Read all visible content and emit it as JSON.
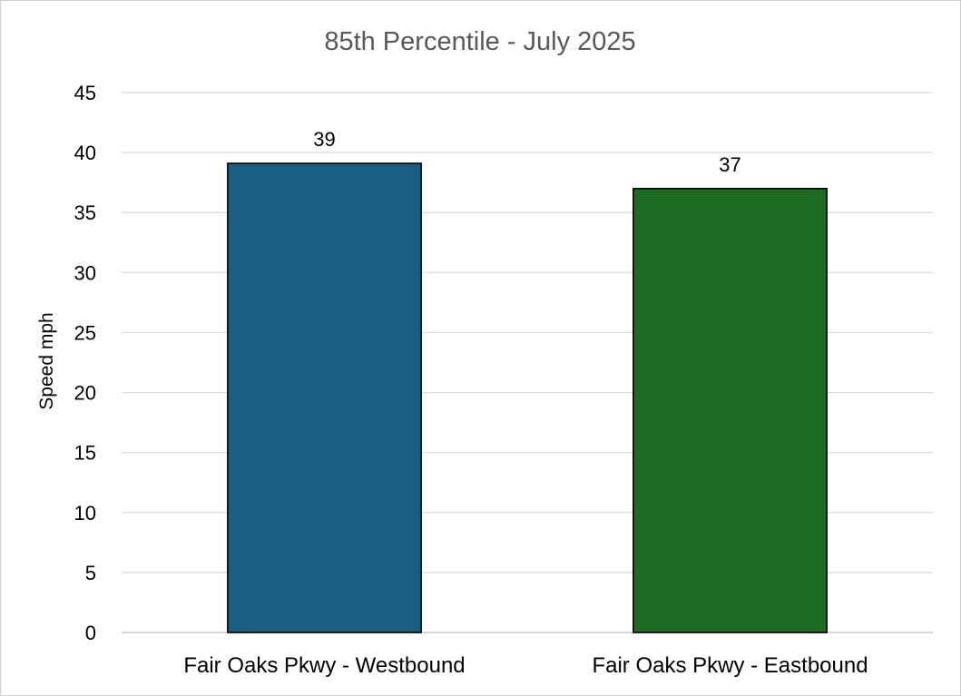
{
  "chart_data": {
    "type": "bar",
    "title": "85th Percentile - July 2025",
    "xlabel": "",
    "ylabel": "Speed mph",
    "categories": [
      "Fair Oaks Pkwy - Westbound",
      "Fair Oaks Pkwy - Eastbound"
    ],
    "values": [
      39.1,
      37.0
    ],
    "data_labels": [
      "39",
      "37"
    ],
    "colors": [
      "#1a5f82",
      "#1e6b24"
    ],
    "ylim": [
      0,
      45
    ],
    "yticks": [
      0,
      5,
      10,
      15,
      20,
      25,
      30,
      35,
      40,
      45
    ],
    "grid": true,
    "legend": "none"
  }
}
